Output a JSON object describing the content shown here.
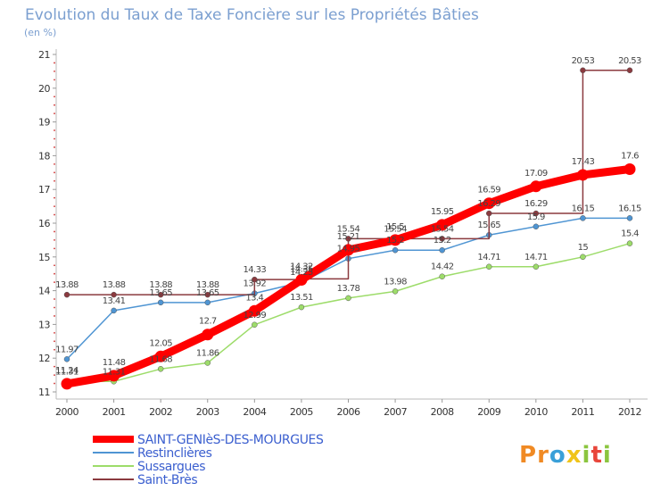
{
  "chart_data": {
    "type": "line",
    "title": "Evolution du Taux de Taxe Foncière sur les Propriétés Bâties",
    "subtitle": "(en %)",
    "xlabel": "",
    "ylabel": "",
    "x": [
      "2000",
      "2001",
      "2002",
      "2003",
      "2004",
      "2005",
      "2006",
      "2007",
      "2008",
      "2009",
      "2010",
      "2011",
      "2012"
    ],
    "yticks": [
      "11",
      "12",
      "13",
      "14",
      "15",
      "16",
      "17",
      "18",
      "19",
      "20",
      "21"
    ],
    "ylim": [
      11,
      21
    ],
    "grid": false,
    "legend_position": "bottom-left",
    "series": [
      {
        "name": "SAINT-GENIèS-DES-MOURGUES",
        "color": "#ff0000",
        "values": [
          11.24,
          11.48,
          12.05,
          12.7,
          13.4,
          14.32,
          15.21,
          15.5,
          15.95,
          16.59,
          17.09,
          17.43,
          17.6
        ],
        "labels": [
          "11.24",
          "11.48",
          "12.05",
          "12.7",
          "13.4",
          "14.32",
          "15.21",
          "15.5",
          "15.95",
          "16.59",
          "17.09",
          "17.43",
          "17.6"
        ]
      },
      {
        "name": "Restinclières",
        "color": "#4f95d3",
        "values": [
          11.97,
          13.41,
          13.65,
          13.65,
          13.92,
          14.25,
          14.95,
          15.2,
          15.2,
          15.65,
          15.9,
          16.15,
          16.15
        ],
        "labels": [
          "11.97",
          "13.41",
          "13.65",
          "13.65",
          "13.92",
          "14.25",
          "14.95",
          "15.2",
          "15.2",
          "15.65",
          "15.9",
          "16.15",
          "16.15"
        ]
      },
      {
        "name": "Sussargues",
        "color": "#9ddc6a",
        "values": [
          11.31,
          11.31,
          11.68,
          11.86,
          12.99,
          13.51,
          13.78,
          13.98,
          14.42,
          14.71,
          14.71,
          15,
          15.4
        ],
        "labels": [
          "11.31",
          "11.31",
          "11.68",
          "11.86",
          "12.99",
          "13.51",
          "13.78",
          "13.98",
          "14.42",
          "14.71",
          "14.71",
          "15",
          "15.4"
        ]
      },
      {
        "name": "Saint-Brès",
        "color": "#8b3a3f",
        "values": [
          13.88,
          13.88,
          13.88,
          13.88,
          14.33,
          14.35,
          15.54,
          15.54,
          15.54,
          16.29,
          16.29,
          20.53,
          20.53
        ],
        "labels": [
          "13.88",
          "13.88",
          "13.88",
          "13.88",
          "14.33",
          "14.35",
          "15.54",
          "15.54",
          "15.54",
          "16.29",
          "16.29",
          "20.53",
          "20.53"
        ],
        "step": true
      }
    ],
    "logo_text": "Proxiti",
    "logo_colors": [
      "#f08a24",
      "#f08a24",
      "#3aa0d8",
      "#f0c419",
      "#8bc53f",
      "#e8463b",
      "#8bc53f"
    ]
  }
}
